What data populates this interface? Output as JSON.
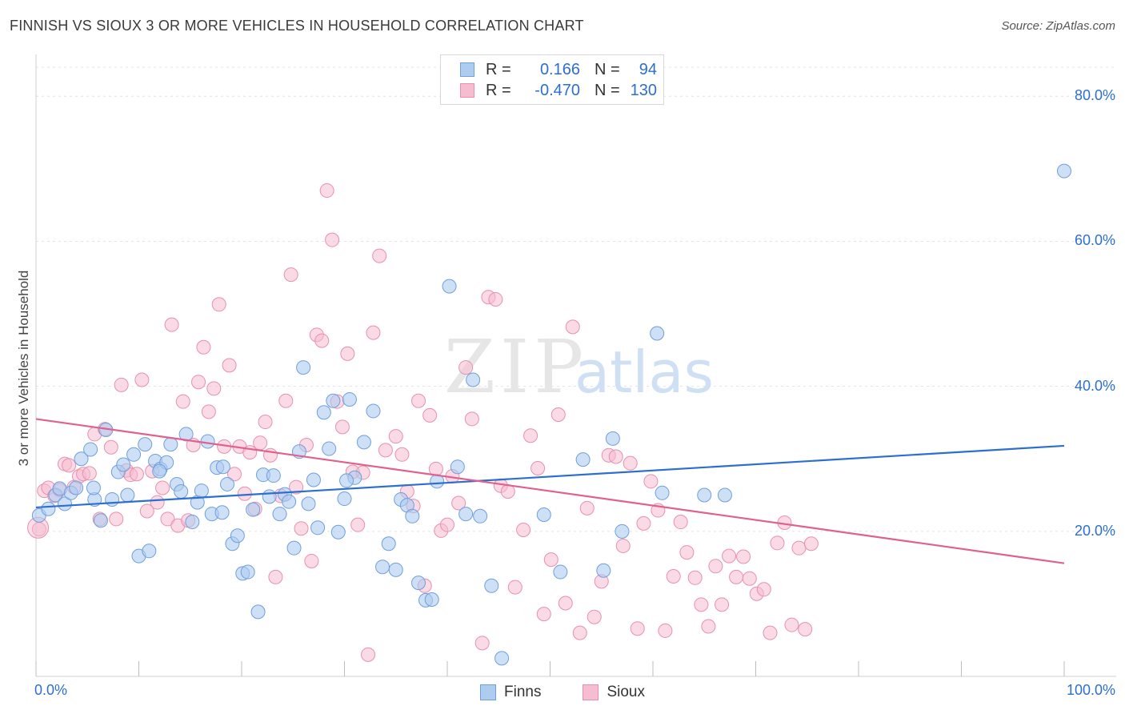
{
  "header": {
    "title": "FINNISH VS SIOUX 3 OR MORE VEHICLES IN HOUSEHOLD CORRELATION CHART",
    "source": "Source: ZipAtlas.com"
  },
  "watermark": {
    "zip": "ZIP",
    "atlas": "atlas"
  },
  "legend": {
    "rows": [
      {
        "r_label": "R =",
        "r_value": "0.166",
        "n_label": "N =",
        "n_value": "94"
      },
      {
        "r_label": "R =",
        "r_value": "-0.470",
        "n_label": "N =",
        "n_value": "130"
      }
    ]
  },
  "bottom_legend": {
    "finns": "Finns",
    "sioux": "Sioux"
  },
  "colors": {
    "finns_fill": "#aecbf0",
    "finns_stroke": "#6f9fdc",
    "finns_line": "#2c6fd1",
    "sioux_fill": "#f6bcd0",
    "sioux_stroke": "#e890ad",
    "sioux_line": "#e0608e",
    "tick_label": "#2c6fd1",
    "grid": "#e4e4e4"
  },
  "chart_data": {
    "type": "scatter",
    "title": "FINNISH VS SIOUX 3 OR MORE VEHICLES IN HOUSEHOLD CORRELATION CHART",
    "xlabel": "",
    "ylabel": "3 or more Vehicles in Household",
    "xlim": [
      0,
      100
    ],
    "ylim": [
      0,
      85
    ],
    "x_tick_labels": [
      "0.0%",
      "100.0%"
    ],
    "y_ticks": [
      20,
      40,
      60,
      80
    ],
    "y_tick_labels": [
      "20.0%",
      "40.0%",
      "60.0%",
      "80.0%"
    ],
    "grid": "horizontal dashed",
    "legend_placement": "top-center",
    "series": [
      {
        "name": "Finns",
        "r": 0.166,
        "n": 94,
        "trend": {
          "x": [
            0,
            100
          ],
          "y": [
            23.3,
            31.8
          ]
        },
        "points": [
          [
            0.3,
            22.2
          ],
          [
            1.2,
            23.1
          ],
          [
            1.9,
            25.0
          ],
          [
            2.3,
            25.9
          ],
          [
            2.8,
            23.8
          ],
          [
            3.4,
            25.3
          ],
          [
            3.9,
            26.0
          ],
          [
            4.4,
            30.0
          ],
          [
            5.3,
            31.3
          ],
          [
            5.7,
            24.4
          ],
          [
            6.3,
            21.5
          ],
          [
            6.8,
            34.0
          ],
          [
            7.4,
            24.4
          ],
          [
            8.0,
            28.2
          ],
          [
            8.5,
            29.2
          ],
          [
            8.9,
            25.0
          ],
          [
            9.5,
            30.6
          ],
          [
            10.0,
            16.6
          ],
          [
            10.6,
            32.0
          ],
          [
            11.0,
            17.3
          ],
          [
            11.6,
            29.7
          ],
          [
            12.1,
            28.6
          ],
          [
            12.7,
            29.5
          ],
          [
            13.1,
            32.0
          ],
          [
            13.7,
            26.5
          ],
          [
            14.1,
            25.5
          ],
          [
            14.6,
            33.4
          ],
          [
            15.2,
            21.3
          ],
          [
            15.7,
            24.0
          ],
          [
            16.1,
            25.6
          ],
          [
            16.7,
            32.4
          ],
          [
            17.1,
            22.4
          ],
          [
            17.6,
            28.8
          ],
          [
            18.1,
            22.6
          ],
          [
            18.6,
            26.5
          ],
          [
            19.1,
            18.3
          ],
          [
            19.6,
            19.4
          ],
          [
            20.1,
            14.2
          ],
          [
            20.6,
            14.4
          ],
          [
            21.1,
            23.0
          ],
          [
            21.6,
            8.9
          ],
          [
            22.1,
            27.8
          ],
          [
            22.7,
            24.8
          ],
          [
            23.1,
            27.7
          ],
          [
            23.7,
            22.4
          ],
          [
            24.2,
            25.1
          ],
          [
            24.6,
            24.1
          ],
          [
            25.1,
            17.7
          ],
          [
            25.6,
            31.0
          ],
          [
            26.0,
            42.6
          ],
          [
            26.5,
            23.8
          ],
          [
            27.0,
            27.1
          ],
          [
            27.4,
            20.5
          ],
          [
            28.0,
            36.4
          ],
          [
            28.5,
            31.4
          ],
          [
            28.9,
            38.0
          ],
          [
            29.4,
            19.9
          ],
          [
            30.0,
            24.5
          ],
          [
            30.5,
            38.2
          ],
          [
            31.0,
            27.4
          ],
          [
            31.9,
            32.3
          ],
          [
            32.8,
            36.6
          ],
          [
            33.7,
            15.1
          ],
          [
            34.3,
            18.3
          ],
          [
            35.0,
            14.7
          ],
          [
            35.5,
            24.4
          ],
          [
            36.1,
            23.6
          ],
          [
            36.6,
            22.1
          ],
          [
            37.2,
            12.9
          ],
          [
            37.9,
            10.5
          ],
          [
            38.5,
            10.6
          ],
          [
            39.0,
            26.9
          ],
          [
            40.2,
            53.8
          ],
          [
            41.0,
            28.9
          ],
          [
            41.8,
            22.4
          ],
          [
            42.5,
            40.9
          ],
          [
            43.2,
            22.1
          ],
          [
            44.3,
            12.5
          ],
          [
            45.3,
            2.5
          ],
          [
            49.4,
            22.3
          ],
          [
            51.0,
            14.4
          ],
          [
            53.2,
            29.9
          ],
          [
            55.2,
            14.6
          ],
          [
            56.1,
            32.8
          ],
          [
            57.0,
            20.0
          ],
          [
            60.4,
            47.3
          ],
          [
            60.9,
            25.3
          ],
          [
            65.0,
            25.0
          ],
          [
            67.0,
            25.0
          ],
          [
            100.0,
            69.7
          ],
          [
            18.2,
            28.9
          ],
          [
            30.2,
            27.0
          ],
          [
            12.0,
            28.3
          ],
          [
            5.6,
            26.0
          ]
        ]
      },
      {
        "name": "Sioux",
        "r": -0.47,
        "n": 130,
        "trend": {
          "x": [
            0,
            100
          ],
          "y": [
            35.5,
            15.6
          ]
        },
        "points": [
          [
            0.3,
            20.3
          ],
          [
            0.8,
            25.6
          ],
          [
            1.2,
            26.0
          ],
          [
            1.8,
            24.9
          ],
          [
            2.3,
            25.7
          ],
          [
            2.8,
            29.3
          ],
          [
            3.2,
            29.1
          ],
          [
            3.7,
            26.1
          ],
          [
            4.2,
            27.6
          ],
          [
            4.6,
            27.9
          ],
          [
            5.2,
            28.0
          ],
          [
            5.7,
            33.4
          ],
          [
            6.2,
            21.7
          ],
          [
            6.7,
            34.1
          ],
          [
            7.3,
            31.6
          ],
          [
            7.8,
            21.7
          ],
          [
            8.3,
            40.2
          ],
          [
            8.8,
            28.4
          ],
          [
            9.2,
            27.8
          ],
          [
            9.8,
            27.9
          ],
          [
            10.3,
            40.9
          ],
          [
            10.8,
            22.8
          ],
          [
            11.3,
            28.3
          ],
          [
            11.8,
            24.0
          ],
          [
            12.3,
            26.0
          ],
          [
            12.8,
            21.7
          ],
          [
            13.2,
            48.5
          ],
          [
            13.8,
            20.8
          ],
          [
            14.3,
            37.9
          ],
          [
            14.8,
            21.5
          ],
          [
            15.3,
            31.9
          ],
          [
            15.8,
            40.6
          ],
          [
            16.3,
            45.4
          ],
          [
            16.8,
            36.5
          ],
          [
            17.3,
            39.7
          ],
          [
            17.8,
            51.3
          ],
          [
            18.3,
            31.7
          ],
          [
            18.8,
            42.9
          ],
          [
            19.3,
            27.9
          ],
          [
            19.8,
            31.7
          ],
          [
            20.3,
            25.2
          ],
          [
            20.8,
            30.9
          ],
          [
            21.3,
            23.1
          ],
          [
            21.8,
            32.2
          ],
          [
            22.3,
            35.1
          ],
          [
            22.8,
            30.5
          ],
          [
            23.3,
            13.7
          ],
          [
            23.8,
            24.9
          ],
          [
            24.3,
            38.0
          ],
          [
            24.8,
            55.4
          ],
          [
            25.3,
            26.1
          ],
          [
            25.8,
            20.4
          ],
          [
            26.3,
            31.9
          ],
          [
            26.8,
            15.9
          ],
          [
            27.3,
            47.1
          ],
          [
            27.8,
            46.3
          ],
          [
            28.3,
            67.0
          ],
          [
            28.8,
            60.2
          ],
          [
            29.3,
            37.9
          ],
          [
            29.8,
            34.4
          ],
          [
            30.3,
            44.5
          ],
          [
            30.8,
            28.2
          ],
          [
            31.3,
            20.9
          ],
          [
            31.8,
            28.1
          ],
          [
            32.3,
            3.0
          ],
          [
            32.8,
            47.4
          ],
          [
            33.4,
            58.0
          ],
          [
            34.0,
            31.2
          ],
          [
            35.0,
            33.1
          ],
          [
            35.6,
            30.6
          ],
          [
            36.1,
            25.5
          ],
          [
            36.7,
            23.5
          ],
          [
            37.2,
            38.0
          ],
          [
            37.8,
            12.5
          ],
          [
            38.3,
            36.0
          ],
          [
            38.9,
            28.6
          ],
          [
            39.4,
            20.1
          ],
          [
            40.0,
            20.9
          ],
          [
            40.5,
            27.6
          ],
          [
            41.1,
            23.9
          ],
          [
            41.8,
            42.6
          ],
          [
            42.4,
            35.5
          ],
          [
            43.4,
            4.6
          ],
          [
            44.0,
            52.3
          ],
          [
            44.7,
            52.0
          ],
          [
            45.2,
            26.3
          ],
          [
            45.9,
            25.5
          ],
          [
            46.6,
            12.3
          ],
          [
            47.4,
            20.2
          ],
          [
            48.1,
            33.2
          ],
          [
            48.8,
            28.7
          ],
          [
            49.4,
            8.6
          ],
          [
            50.1,
            16.1
          ],
          [
            50.8,
            36.1
          ],
          [
            51.5,
            10.1
          ],
          [
            52.2,
            48.2
          ],
          [
            52.9,
            6.0
          ],
          [
            53.6,
            23.2
          ],
          [
            54.3,
            8.2
          ],
          [
            55.0,
            13.1
          ],
          [
            55.7,
            30.5
          ],
          [
            56.4,
            30.3
          ],
          [
            57.1,
            18.0
          ],
          [
            57.8,
            29.4
          ],
          [
            58.5,
            6.6
          ],
          [
            59.1,
            21.1
          ],
          [
            59.8,
            26.9
          ],
          [
            60.5,
            22.9
          ],
          [
            61.2,
            6.3
          ],
          [
            62.0,
            13.8
          ],
          [
            62.7,
            21.3
          ],
          [
            63.3,
            17.1
          ],
          [
            64.1,
            13.6
          ],
          [
            64.7,
            9.9
          ],
          [
            65.4,
            6.9
          ],
          [
            66.1,
            15.2
          ],
          [
            66.7,
            9.9
          ],
          [
            67.4,
            16.6
          ],
          [
            68.1,
            13.7
          ],
          [
            68.8,
            16.5
          ],
          [
            69.4,
            13.5
          ],
          [
            70.1,
            11.4
          ],
          [
            70.8,
            12.0
          ],
          [
            71.4,
            6.0
          ],
          [
            72.1,
            18.4
          ],
          [
            72.8,
            21.2
          ],
          [
            73.5,
            7.1
          ],
          [
            74.2,
            17.7
          ],
          [
            74.8,
            6.5
          ],
          [
            75.4,
            18.3
          ]
        ]
      }
    ]
  }
}
